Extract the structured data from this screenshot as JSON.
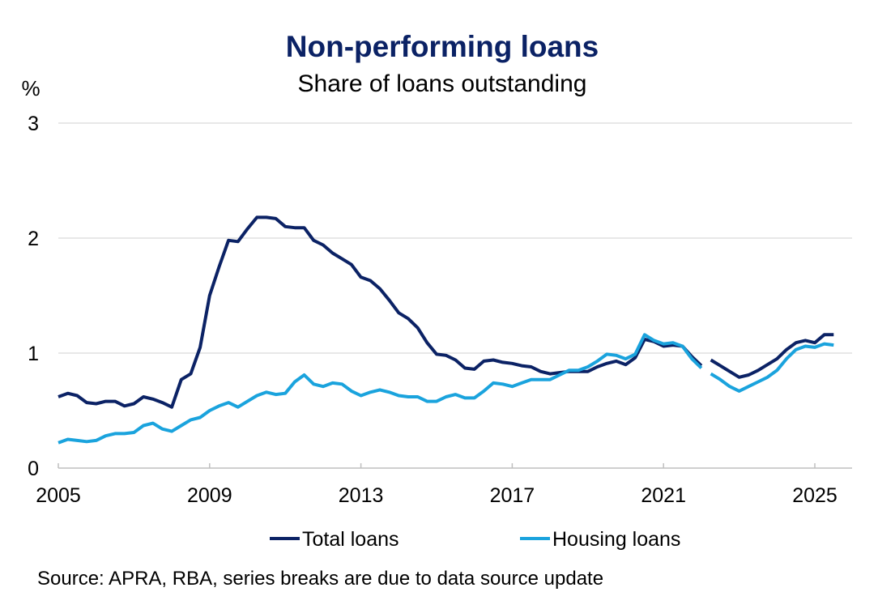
{
  "chart_data": {
    "type": "line",
    "title": "Non-performing loans",
    "subtitle": "Share of loans outstanding",
    "ylabel": "%",
    "xlabel": "",
    "ylim": [
      0,
      3
    ],
    "yticks": [
      "0",
      "1",
      "2",
      "3"
    ],
    "xlim": [
      2005,
      2026.1
    ],
    "xticks": [
      "2005",
      "2009",
      "2013",
      "2017",
      "2021",
      "2025"
    ],
    "grid": "horizontal",
    "legend_position": "bottom",
    "x_start": 2005,
    "x_step_years": 0.25,
    "series": [
      {
        "name": "Total loans",
        "color": "#0b2265",
        "segments": [
          {
            "start_index": 0,
            "values": [
              0.62,
              0.65,
              0.63,
              0.57,
              0.56,
              0.58,
              0.58,
              0.54,
              0.56,
              0.62,
              0.6,
              0.57,
              0.53,
              0.77,
              0.82,
              1.05,
              1.5,
              1.75,
              1.98,
              1.97,
              2.08,
              2.18,
              2.18,
              2.17,
              2.1,
              2.09,
              2.09,
              1.98,
              1.94,
              1.87,
              1.82,
              1.77,
              1.66,
              1.63,
              1.56,
              1.46,
              1.35,
              1.3,
              1.22,
              1.09,
              0.99,
              0.98,
              0.94,
              0.87,
              0.86,
              0.93,
              0.94,
              0.92,
              0.91,
              0.89,
              0.88,
              0.84,
              0.82,
              0.83,
              0.84,
              0.84,
              0.84,
              0.88,
              0.91,
              0.93,
              0.9,
              0.96,
              1.12,
              1.1,
              1.06,
              1.07,
              1.06,
              0.97,
              0.89
            ]
          },
          {
            "start_index": 69,
            "values": [
              0.94,
              0.89,
              0.84,
              0.79,
              0.81,
              0.85,
              0.9,
              0.95,
              1.03,
              1.09,
              1.11,
              1.09,
              1.16,
              1.16
            ]
          }
        ]
      },
      {
        "name": "Housing loans",
        "color": "#1aa3dd",
        "segments": [
          {
            "start_index": 0,
            "values": [
              0.22,
              0.25,
              0.24,
              0.23,
              0.24,
              0.28,
              0.3,
              0.3,
              0.31,
              0.37,
              0.39,
              0.34,
              0.32,
              0.37,
              0.42,
              0.44,
              0.5,
              0.54,
              0.57,
              0.53,
              0.58,
              0.63,
              0.66,
              0.64,
              0.65,
              0.75,
              0.81,
              0.73,
              0.71,
              0.74,
              0.73,
              0.67,
              0.63,
              0.66,
              0.68,
              0.66,
              0.63,
              0.62,
              0.62,
              0.58,
              0.58,
              0.62,
              0.64,
              0.61,
              0.61,
              0.67,
              0.74,
              0.73,
              0.71,
              0.74,
              0.77,
              0.77,
              0.77,
              0.81,
              0.85,
              0.85,
              0.88,
              0.93,
              0.99,
              0.98,
              0.95,
              0.99,
              1.16,
              1.11,
              1.08,
              1.09,
              1.06,
              0.95,
              0.87
            ]
          },
          {
            "start_index": 69,
            "values": [
              0.82,
              0.77,
              0.71,
              0.67,
              0.71,
              0.75,
              0.79,
              0.85,
              0.95,
              1.03,
              1.06,
              1.05,
              1.08,
              1.07
            ]
          }
        ]
      }
    ],
    "source": "Source: APRA, RBA, series breaks are due to data source update"
  },
  "colors": {
    "title": "#0b2265",
    "grid": "#d9d9d9",
    "axis": "#bfbfbf"
  }
}
